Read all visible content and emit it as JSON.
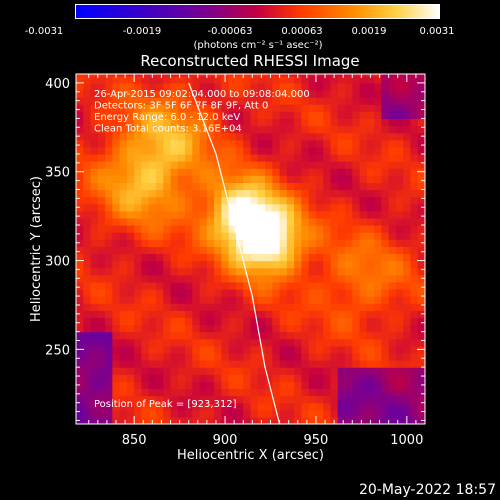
{
  "colorbar": {
    "ticks": [
      "-0.0031",
      "-0.0019",
      "-0.00063",
      "0.00063",
      "0.0019",
      "0.0031"
    ],
    "units": "(photons cm⁻² s⁻¹ asec⁻²)"
  },
  "chart_data": {
    "type": "heatmap",
    "title": "Reconstructed RHESSI Image",
    "xlabel": "Heliocentric X (arcsec)",
    "ylabel": "Heliocentric Y (arcsec)",
    "xlim": [
      818,
      1010
    ],
    "ylim": [
      208,
      405
    ],
    "xticks": [
      850,
      900,
      950,
      1000
    ],
    "yticks": [
      250,
      300,
      350,
      400
    ],
    "clim": [
      -0.0031,
      0.0031
    ],
    "colormap": "blue-purple-red-orange-yellow-white",
    "annotations": [
      "26-Apr-2015 09:02:04.000 to 09:08:04.000",
      "Detectors: 3F 5F 6F 7F 8F 9F, Att 0",
      "Energy Range: 6.0 - 12.0 keV",
      "Clean     Total counts: 3.16E+04"
    ],
    "peak_label": "Position of Peak = [923,312]",
    "peak": [
      923,
      312
    ],
    "sources": [
      {
        "x": 923,
        "y": 312,
        "intensity": 0.0031
      },
      {
        "x": 908,
        "y": 328,
        "intensity": 0.0023
      },
      {
        "x": 855,
        "y": 345,
        "intensity": 0.0016
      },
      {
        "x": 870,
        "y": 372,
        "intensity": 0.0012
      },
      {
        "x": 975,
        "y": 290,
        "intensity": 0.001
      }
    ],
    "limb_curve": {
      "x": [
        880,
        895,
        905,
        915,
        922,
        930
      ],
      "y": [
        400,
        360,
        320,
        280,
        240,
        208
      ]
    }
  },
  "footer": {
    "timestamp": "20-May-2022 18:57"
  }
}
